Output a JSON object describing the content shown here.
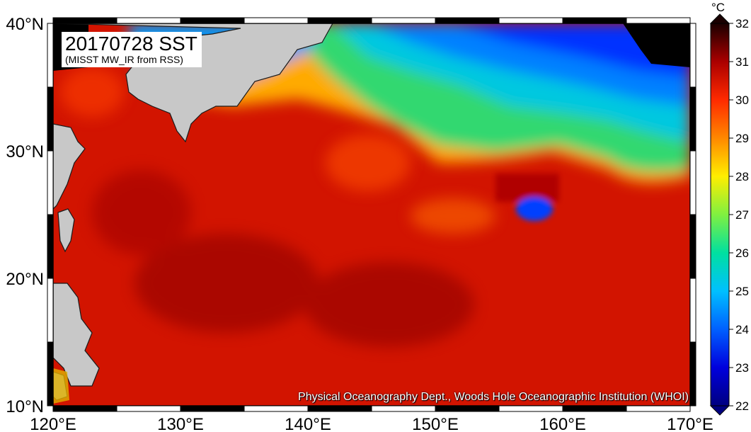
{
  "title": "20170728 SST",
  "subtitle": "(MISST MW_IR from RSS)",
  "credit": "Physical Oceanography Dept., Woods Hole Oceanographic Institution (WHOI)",
  "axes": {
    "lon_min": 120,
    "lon_max": 170,
    "lat_min": 10,
    "lat_max": 40,
    "x_ticks": [
      "120°E",
      "130°E",
      "140°E",
      "150°E",
      "160°E",
      "170°E"
    ],
    "y_ticks": [
      "10°N",
      "20°N",
      "30°N",
      "40°N"
    ]
  },
  "colorbar": {
    "unit": "°C",
    "min": 22,
    "max": 32,
    "ticks": [
      "22",
      "23",
      "24",
      "25",
      "26",
      "27",
      "28",
      "29",
      "30",
      "31",
      "32"
    ],
    "colors": [
      "#000080",
      "#0000dd",
      "#0050ff",
      "#00b0ff",
      "#00e0b0",
      "#50f050",
      "#ffff00",
      "#ff9900",
      "#ff3300",
      "#cc0000",
      "#660000",
      "#1a0000"
    ]
  },
  "colors": {
    "land": "#c8c8c8",
    "missing": "#000000"
  }
}
